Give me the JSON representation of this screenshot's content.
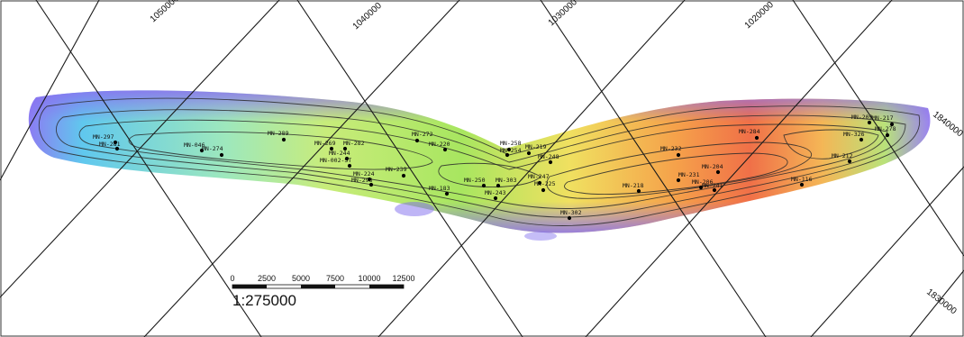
{
  "map": {
    "coordinate_labels": [
      {
        "text": "1050000"
      },
      {
        "text": "1040000"
      },
      {
        "text": "1030000"
      },
      {
        "text": "1020000"
      },
      {
        "text": "1840000"
      },
      {
        "text": "1830000"
      }
    ],
    "wells": [
      {
        "label": "MN-297"
      },
      {
        "label": "MN-281"
      },
      {
        "label": "MN-046"
      },
      {
        "label": "MN-274"
      },
      {
        "label": "MN-289"
      },
      {
        "label": "MN-269"
      },
      {
        "label": "MN-282"
      },
      {
        "label": "MN-244"
      },
      {
        "label": "MN-002-ST"
      },
      {
        "label": "MN-272"
      },
      {
        "label": "MN-220"
      },
      {
        "label": "MN-258"
      },
      {
        "label": "MN-219"
      },
      {
        "label": "MN-254"
      },
      {
        "label": "MN-248"
      },
      {
        "label": "MN-239"
      },
      {
        "label": "MN-224"
      },
      {
        "label": "MN-293"
      },
      {
        "label": "MN-183"
      },
      {
        "label": "MN-250"
      },
      {
        "label": "MN-303"
      },
      {
        "label": "MN-247"
      },
      {
        "label": "MN-243"
      },
      {
        "label": "MN-225"
      },
      {
        "label": "MN-302"
      },
      {
        "label": "MN-232"
      },
      {
        "label": "MN-218"
      },
      {
        "label": "MN-231"
      },
      {
        "label": "MN-204"
      },
      {
        "label": "MN-206"
      },
      {
        "label": "MN-241"
      },
      {
        "label": "MN-284"
      },
      {
        "label": "MN-116"
      },
      {
        "label": "MN-209"
      },
      {
        "label": "MN-217"
      },
      {
        "label": "MN-278"
      },
      {
        "label": "MN-326"
      },
      {
        "label": "MN-212"
      }
    ]
  },
  "scale_bar": {
    "ticks": [
      "0",
      "2500",
      "5000",
      "7500",
      "10000",
      "12500"
    ],
    "ratio": "1:275000"
  }
}
